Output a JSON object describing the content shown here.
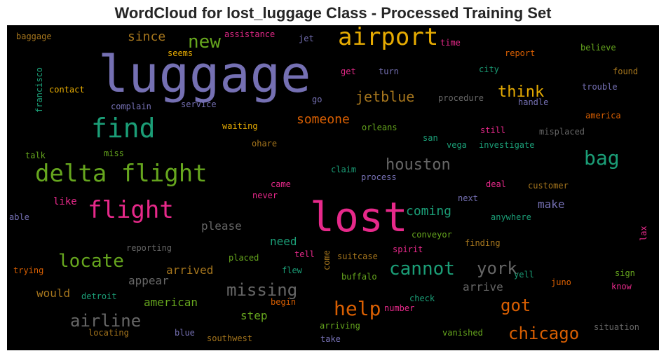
{
  "title": "WordCloud for lost_luggage Class - Processed Training Set",
  "chart_data": {
    "type": "wordcloud",
    "background": "#000000",
    "words": [
      {
        "text": "luggage",
        "size": 72,
        "color": "#7570b3"
      },
      {
        "text": "lost",
        "size": 58,
        "color": "#e7298a"
      },
      {
        "text": "airport",
        "size": 34,
        "color": "#e6ab02"
      },
      {
        "text": "find",
        "size": 38,
        "color": "#1b9e77"
      },
      {
        "text": "delta flight",
        "size": 34,
        "color": "#66a61e"
      },
      {
        "text": "flight",
        "size": 34,
        "color": "#e7298a"
      },
      {
        "text": "new",
        "size": 26,
        "color": "#66a61e"
      },
      {
        "text": "bag",
        "size": 28,
        "color": "#1b9e77"
      },
      {
        "text": "houston",
        "size": 22,
        "color": "#666666"
      },
      {
        "text": "cannot",
        "size": 26,
        "color": "#1b9e77"
      },
      {
        "text": "york",
        "size": 24,
        "color": "#666666"
      },
      {
        "text": "locate",
        "size": 26,
        "color": "#66a61e"
      },
      {
        "text": "missing",
        "size": 24,
        "color": "#666666"
      },
      {
        "text": "help",
        "size": 28,
        "color": "#d95f02"
      },
      {
        "text": "got",
        "size": 24,
        "color": "#d95f02"
      },
      {
        "text": "chicago",
        "size": 24,
        "color": "#d95f02"
      },
      {
        "text": "airline",
        "size": 24,
        "color": "#666666"
      },
      {
        "text": "think",
        "size": 22,
        "color": "#e6ab02"
      },
      {
        "text": "jetblue",
        "size": 20,
        "color": "#a6761d"
      },
      {
        "text": "someone",
        "size": 18,
        "color": "#d95f02"
      },
      {
        "text": "since",
        "size": 18,
        "color": "#a6761d"
      },
      {
        "text": "coming",
        "size": 18,
        "color": "#1b9e77"
      },
      {
        "text": "make",
        "size": 16,
        "color": "#7570b3"
      },
      {
        "text": "please",
        "size": 16,
        "color": "#666666"
      },
      {
        "text": "need",
        "size": 16,
        "color": "#1b9e77"
      },
      {
        "text": "arrived",
        "size": 16,
        "color": "#a6761d"
      },
      {
        "text": "appear",
        "size": 16,
        "color": "#666666"
      },
      {
        "text": "would",
        "size": 16,
        "color": "#a6761d"
      },
      {
        "text": "american",
        "size": 16,
        "color": "#66a61e"
      },
      {
        "text": "step",
        "size": 16,
        "color": "#66a61e"
      },
      {
        "text": "arrive",
        "size": 16,
        "color": "#666666"
      },
      {
        "text": "like",
        "size": 14,
        "color": "#e7298a"
      },
      {
        "text": "baggage",
        "size": 12,
        "color": "#a6761d"
      },
      {
        "text": "assistance",
        "size": 12,
        "color": "#e7298a"
      },
      {
        "text": "jet",
        "size": 12,
        "color": "#7570b3"
      },
      {
        "text": "time",
        "size": 12,
        "color": "#e7298a"
      },
      {
        "text": "seems",
        "size": 12,
        "color": "#e6ab02"
      },
      {
        "text": "report",
        "size": 12,
        "color": "#d95f02"
      },
      {
        "text": "believe",
        "size": 12,
        "color": "#66a61e"
      },
      {
        "text": "francisco",
        "size": 12,
        "color": "#1b9e77"
      },
      {
        "text": "get",
        "size": 12,
        "color": "#e7298a"
      },
      {
        "text": "turn",
        "size": 12,
        "color": "#7570b3"
      },
      {
        "text": "city",
        "size": 12,
        "color": "#1b9e77"
      },
      {
        "text": "found",
        "size": 12,
        "color": "#a6761d"
      },
      {
        "text": "contact",
        "size": 12,
        "color": "#e6ab02"
      },
      {
        "text": "trouble",
        "size": 12,
        "color": "#7570b3"
      },
      {
        "text": "go",
        "size": 12,
        "color": "#7570b3"
      },
      {
        "text": "procedure",
        "size": 12,
        "color": "#666666"
      },
      {
        "text": "handle",
        "size": 12,
        "color": "#7570b3"
      },
      {
        "text": "complain",
        "size": 12,
        "color": "#7570b3"
      },
      {
        "text": "service",
        "size": 12,
        "color": "#7570b3"
      },
      {
        "text": "america",
        "size": 12,
        "color": "#d95f02"
      },
      {
        "text": "waiting",
        "size": 12,
        "color": "#e6ab02"
      },
      {
        "text": "orleans",
        "size": 12,
        "color": "#66a61e"
      },
      {
        "text": "still",
        "size": 12,
        "color": "#e7298a"
      },
      {
        "text": "misplaced",
        "size": 12,
        "color": "#666666"
      },
      {
        "text": "san",
        "size": 12,
        "color": "#1b9e77"
      },
      {
        "text": "ohare",
        "size": 12,
        "color": "#a6761d"
      },
      {
        "text": "vega",
        "size": 12,
        "color": "#1b9e77"
      },
      {
        "text": "investigate",
        "size": 12,
        "color": "#1b9e77"
      },
      {
        "text": "talk",
        "size": 12,
        "color": "#66a61e"
      },
      {
        "text": "miss",
        "size": 12,
        "color": "#66a61e"
      },
      {
        "text": "claim",
        "size": 12,
        "color": "#1b9e77"
      },
      {
        "text": "process",
        "size": 12,
        "color": "#7570b3"
      },
      {
        "text": "came",
        "size": 12,
        "color": "#e7298a"
      },
      {
        "text": "deal",
        "size": 12,
        "color": "#e7298a"
      },
      {
        "text": "customer",
        "size": 12,
        "color": "#a6761d"
      },
      {
        "text": "never",
        "size": 12,
        "color": "#e7298a"
      },
      {
        "text": "next",
        "size": 12,
        "color": "#7570b3"
      },
      {
        "text": "able",
        "size": 12,
        "color": "#7570b3"
      },
      {
        "text": "anywhere",
        "size": 12,
        "color": "#1b9e77"
      },
      {
        "text": "conveyor",
        "size": 12,
        "color": "#66a61e"
      },
      {
        "text": "reporting",
        "size": 12,
        "color": "#666666"
      },
      {
        "text": "tell",
        "size": 12,
        "color": "#e7298a"
      },
      {
        "text": "finding",
        "size": 12,
        "color": "#a6761d"
      },
      {
        "text": "lax",
        "size": 12,
        "color": "#e7298a"
      },
      {
        "text": "placed",
        "size": 12,
        "color": "#66a61e"
      },
      {
        "text": "come",
        "size": 12,
        "color": "#a6761d"
      },
      {
        "text": "suitcase",
        "size": 12,
        "color": "#a6761d"
      },
      {
        "text": "spirit",
        "size": 12,
        "color": "#e7298a"
      },
      {
        "text": "trying",
        "size": 12,
        "color": "#d95f02"
      },
      {
        "text": "flew",
        "size": 12,
        "color": "#1b9e77"
      },
      {
        "text": "buffalo",
        "size": 12,
        "color": "#66a61e"
      },
      {
        "text": "yell",
        "size": 12,
        "color": "#1b9e77"
      },
      {
        "text": "sign",
        "size": 12,
        "color": "#66a61e"
      },
      {
        "text": "juno",
        "size": 12,
        "color": "#d95f02"
      },
      {
        "text": "know",
        "size": 12,
        "color": "#e7298a"
      },
      {
        "text": "detroit",
        "size": 12,
        "color": "#1b9e77"
      },
      {
        "text": "begin",
        "size": 12,
        "color": "#d95f02"
      },
      {
        "text": "check",
        "size": 12,
        "color": "#1b9e77"
      },
      {
        "text": "number",
        "size": 12,
        "color": "#e7298a"
      },
      {
        "text": "locating",
        "size": 12,
        "color": "#a6761d"
      },
      {
        "text": "blue",
        "size": 12,
        "color": "#7570b3"
      },
      {
        "text": "southwest",
        "size": 12,
        "color": "#a6761d"
      },
      {
        "text": "arriving",
        "size": 12,
        "color": "#66a61e"
      },
      {
        "text": "take",
        "size": 12,
        "color": "#7570b3"
      },
      {
        "text": "vanished",
        "size": 12,
        "color": "#66a61e"
      },
      {
        "text": "situation",
        "size": 12,
        "color": "#666666"
      }
    ]
  }
}
